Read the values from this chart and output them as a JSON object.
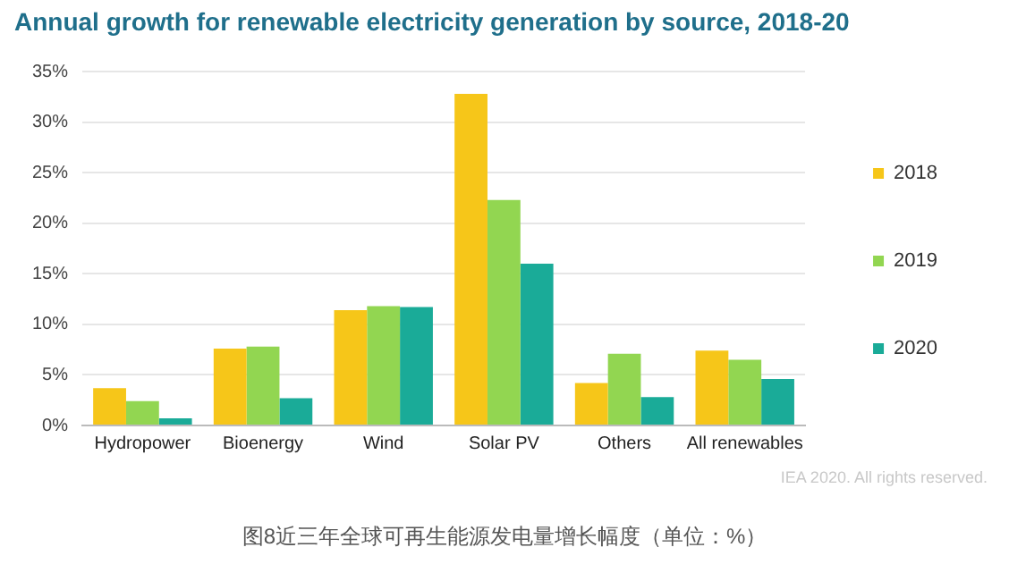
{
  "chart_data": {
    "type": "bar",
    "title": "Annual growth for renewable electricity generation by source, 2018-20",
    "categories": [
      "Hydropower",
      "Bioenergy",
      "Wind",
      "Solar PV",
      "Others",
      "All renewables"
    ],
    "series": [
      {
        "name": "2018",
        "color": "#f6c619",
        "values": [
          3.7,
          7.6,
          11.4,
          32.8,
          4.2,
          7.4
        ]
      },
      {
        "name": "2019",
        "color": "#92d651",
        "values": [
          2.4,
          7.8,
          11.8,
          22.3,
          7.1,
          6.5
        ]
      },
      {
        "name": "2020",
        "color": "#1aab98",
        "values": [
          0.7,
          2.7,
          11.7,
          16.0,
          2.8,
          4.6
        ]
      }
    ],
    "ylim": [
      0,
      35
    ],
    "yticks": [
      {
        "value": 0,
        "label": "0%"
      },
      {
        "value": 5,
        "label": "5%"
      },
      {
        "value": 10,
        "label": "10%"
      },
      {
        "value": 15,
        "label": "15%"
      },
      {
        "value": 20,
        "label": "20%"
      },
      {
        "value": 25,
        "label": "25%"
      },
      {
        "value": 30,
        "label": "30%"
      },
      {
        "value": 35,
        "label": "35%"
      }
    ],
    "grid": "y",
    "legend": "right",
    "annotations": [
      "IEA 2020. All rights reserved.",
      "图8近三年全球可再生能源发电量增长幅度（单位：%）"
    ]
  }
}
